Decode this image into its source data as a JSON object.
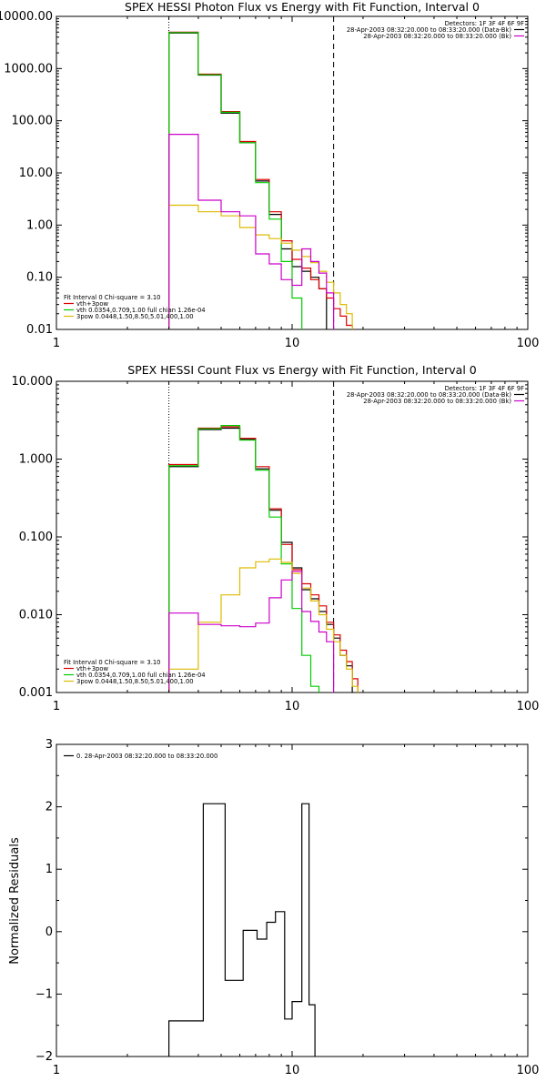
{
  "chart_data": [
    {
      "type": "line",
      "title": "SPEX HESSI Photon Flux vs Energy with Fit Function, Interval 0",
      "xlabel": "",
      "ylabel": "",
      "xscale": "log",
      "yscale": "log",
      "xlim": [
        1,
        100
      ],
      "ylim": [
        0.01,
        10000
      ],
      "xticks": [
        {
          "v": 1,
          "label": "1"
        },
        {
          "v": 10,
          "label": "10"
        },
        {
          "v": 100,
          "label": "100"
        }
      ],
      "yticks": [
        {
          "v": 0.01,
          "label": "0.01"
        },
        {
          "v": 0.1,
          "label": "0.10"
        },
        {
          "v": 1,
          "label": "1.00"
        },
        {
          "v": 10,
          "label": "10.00"
        },
        {
          "v": 100,
          "label": "100.00"
        },
        {
          "v": 1000,
          "label": "1000.00"
        },
        {
          "v": 10000,
          "label": "10000.00"
        }
      ],
      "vlines": [
        {
          "x": 3.0,
          "style": "dotted"
        },
        {
          "x": 15.0,
          "style": "dashed"
        }
      ],
      "legend_top": {
        "placement": "top-right",
        "heading": "Detectors: 1F 3F 4F 6F 9F",
        "entries": [
          {
            "text": "28-Apr-2003 08:32:20.000 to 08:33:20.000 (Data-Bk)",
            "color": "#000000"
          },
          {
            "text": "28-Apr-2003 08:32:20.000 to 08:33:20.000 (Bk)",
            "color": "#cc00cc"
          }
        ]
      },
      "legend_bottom": {
        "placement": "bottom-left",
        "heading": "Fit Interval 0   Chi-square = 3.10",
        "entries": [
          {
            "text": "vth+3pow",
            "color": "#dd0000"
          },
          {
            "text": "vth 0.0354,0.709,1.00  full chian 1.26e-04",
            "color": "#00cc00"
          },
          {
            "text": "3pow 0.0448,1.50,8.50,5.01,400,1.00",
            "color": "#ddbb00"
          }
        ]
      },
      "bin_edges": [
        3,
        4,
        5,
        6,
        7,
        8,
        9,
        10,
        11,
        12,
        13,
        14,
        15,
        16,
        17,
        18,
        19,
        20
      ],
      "series": [
        {
          "name": "Data-Bk",
          "color": "#000000",
          "values": [
            4800,
            750,
            140,
            38,
            7.0,
            1.6,
            0.35,
            0.16,
            0.13,
            0.1,
            0.06,
            null,
            null,
            null,
            null,
            null,
            null
          ]
        },
        {
          "name": "vth+3pow",
          "color": "#dd0000",
          "values": [
            5000,
            780,
            150,
            40,
            7.5,
            1.8,
            0.5,
            0.22,
            0.15,
            0.09,
            0.06,
            0.04,
            0.025,
            0.018,
            0.012,
            0.008,
            null
          ]
        },
        {
          "name": "vth",
          "color": "#00cc00",
          "values": [
            4900,
            760,
            145,
            38,
            6.5,
            1.3,
            0.2,
            0.04,
            0.008,
            null,
            null,
            null,
            null,
            null,
            null,
            null,
            null
          ]
        },
        {
          "name": "3pow",
          "color": "#ddbb00",
          "values": [
            2.4,
            1.8,
            1.5,
            0.9,
            0.65,
            0.55,
            0.45,
            0.33,
            0.25,
            0.19,
            0.13,
            0.08,
            0.05,
            0.03,
            0.02,
            0.01,
            null
          ]
        },
        {
          "name": "Bk",
          "color": "#cc00cc",
          "values": [
            55,
            3.0,
            1.8,
            1.5,
            0.28,
            0.18,
            0.09,
            0.07,
            0.35,
            0.2,
            0.12,
            0.05,
            null,
            null,
            null,
            null,
            null
          ]
        }
      ]
    },
    {
      "type": "line",
      "title": "SPEX HESSI Count Flux vs Energy with Fit Function, Interval 0",
      "xlabel": "",
      "ylabel": "",
      "xscale": "log",
      "yscale": "log",
      "xlim": [
        1,
        100
      ],
      "ylim": [
        0.001,
        10
      ],
      "xticks": [
        {
          "v": 1,
          "label": "1"
        },
        {
          "v": 10,
          "label": "10"
        },
        {
          "v": 100,
          "label": "100"
        }
      ],
      "yticks": [
        {
          "v": 0.001,
          "label": "0.001"
        },
        {
          "v": 0.01,
          "label": "0.010"
        },
        {
          "v": 0.1,
          "label": "0.100"
        },
        {
          "v": 1,
          "label": "1.000"
        },
        {
          "v": 10,
          "label": "10.000"
        }
      ],
      "vlines": [
        {
          "x": 3.0,
          "style": "dotted"
        },
        {
          "x": 15.0,
          "style": "dashed"
        }
      ],
      "legend_top": {
        "placement": "top-right",
        "heading": "Detectors: 1F 3F 4F 6F 9F",
        "entries": [
          {
            "text": "28-Apr-2003 08:32:20.000 to 08:33:20.000 (Data-Bk)",
            "color": "#000000"
          },
          {
            "text": "28-Apr-2003 08:32:20.000 to 08:33:20.000 (Bk)",
            "color": "#cc00cc"
          }
        ]
      },
      "legend_bottom": {
        "placement": "bottom-left",
        "heading": "Fit Interval 0   Chi-square = 3.10",
        "entries": [
          {
            "text": "vth+3pow",
            "color": "#dd0000"
          },
          {
            "text": "vth 0.0354,0.709,1.00  full chian 1.26e-04",
            "color": "#00cc00"
          },
          {
            "text": "3pow 0.0448,1.50,8.50,5.01,400,1.00",
            "color": "#ddbb00"
          }
        ]
      },
      "bin_edges": [
        3,
        4,
        5,
        6,
        7,
        8,
        9,
        10,
        11,
        12,
        13,
        14,
        15,
        16,
        17,
        18,
        19,
        20
      ],
      "series": [
        {
          "name": "Data-Bk",
          "color": "#000000",
          "values": [
            0.8,
            2.4,
            2.5,
            1.8,
            0.75,
            0.22,
            0.085,
            0.04,
            0.021,
            0.016,
            0.011,
            0.0075,
            0.005,
            0.003,
            0.0022,
            null,
            null
          ]
        },
        {
          "name": "vth+3pow",
          "color": "#dd0000",
          "values": [
            0.85,
            2.5,
            2.6,
            1.85,
            0.8,
            0.23,
            0.08,
            0.038,
            0.025,
            0.018,
            0.013,
            0.008,
            0.0055,
            0.0035,
            0.0025,
            0.0015,
            null
          ]
        },
        {
          "name": "vth",
          "color": "#00cc00",
          "values": [
            0.82,
            2.45,
            2.7,
            1.75,
            0.72,
            0.18,
            0.045,
            0.012,
            0.003,
            0.0012,
            null,
            null,
            null,
            null,
            null,
            null,
            null
          ]
        },
        {
          "name": "3pow",
          "color": "#ddbb00",
          "values": [
            0.002,
            0.008,
            0.018,
            0.04,
            0.048,
            0.052,
            0.047,
            0.034,
            0.022,
            0.015,
            0.01,
            0.0065,
            0.0045,
            0.003,
            0.002,
            0.0012,
            null
          ]
        },
        {
          "name": "Bk",
          "color": "#cc00cc",
          "values": [
            0.0105,
            0.0075,
            0.0072,
            0.007,
            0.0078,
            0.0165,
            0.028,
            0.036,
            0.011,
            0.0082,
            0.006,
            0.0045,
            null,
            null,
            null,
            null,
            null
          ]
        }
      ]
    },
    {
      "type": "line",
      "title": "",
      "xlabel": "",
      "ylabel": "Normalized Residuals",
      "xscale": "log",
      "yscale": "linear",
      "xlim": [
        1,
        100
      ],
      "ylim": [
        -2,
        3
      ],
      "xticks": [
        {
          "v": 1,
          "label": "1"
        },
        {
          "v": 10,
          "label": "10"
        },
        {
          "v": 100,
          "label": "100"
        }
      ],
      "yticks": [
        {
          "v": -2,
          "label": "−2"
        },
        {
          "v": -1,
          "label": "−1"
        },
        {
          "v": 0,
          "label": "0"
        },
        {
          "v": 1,
          "label": "1"
        },
        {
          "v": 2,
          "label": "2"
        },
        {
          "v": 3,
          "label": "3"
        }
      ],
      "legend_top": {
        "placement": "top-left",
        "entries": [
          {
            "text": "0. 28-Apr-2003 08:32:20.000 to 08:33:20.000",
            "color": "#000000"
          }
        ]
      },
      "bin_edges": [
        3,
        4.2,
        5.2,
        6.2,
        7.1,
        7.8,
        8.5,
        9.3,
        10,
        11,
        11.8,
        12.5,
        13.5,
        15
      ],
      "series": [
        {
          "name": "0. 28-Apr-2003 08:32:20.000 to 08:33:20.000",
          "color": "#000000",
          "values": [
            -1.43,
            2.05,
            -0.78,
            0.02,
            -0.12,
            0.15,
            0.32,
            -1.4,
            -1.12,
            2.05,
            -1.17,
            null,
            null
          ]
        }
      ]
    }
  ]
}
